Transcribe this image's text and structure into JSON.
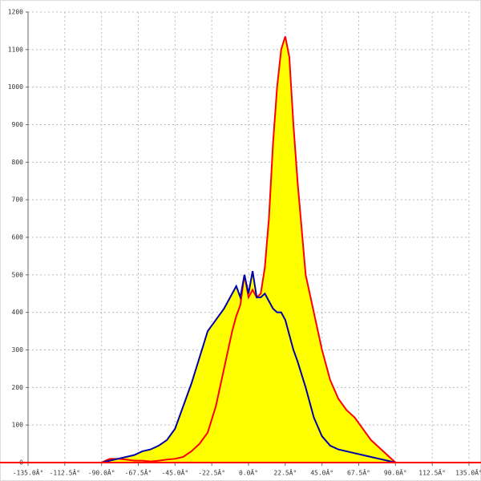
{
  "chart_data": {
    "type": "area",
    "x": [
      -90,
      -85,
      -80,
      -75,
      -70,
      -65,
      -60,
      -55,
      -50,
      -45,
      -40,
      -35,
      -30,
      -25,
      -20,
      -15,
      -10,
      -7.5,
      -5,
      -2.5,
      0,
      2.5,
      5,
      7.5,
      10,
      12.5,
      15,
      17.5,
      20,
      22.5,
      25,
      27.5,
      30,
      35,
      40,
      45,
      50,
      55,
      60,
      65,
      70,
      75,
      80,
      85,
      90
    ],
    "series": [
      {
        "color": "#ff0000",
        "fill_color": "#ffff00",
        "values": [
          0,
          10,
          10,
          8,
          5,
          5,
          3,
          5,
          8,
          10,
          15,
          30,
          50,
          80,
          150,
          250,
          350,
          390,
          420,
          500,
          440,
          460,
          440,
          450,
          520,
          650,
          850,
          1000,
          1100,
          1135,
          1080,
          900,
          750,
          500,
          400,
          300,
          220,
          170,
          140,
          120,
          90,
          60,
          40,
          20,
          0
        ]
      },
      {
        "color": "#0000aa",
        "fill_color": "#ffff00",
        "values": [
          0,
          5,
          10,
          15,
          20,
          30,
          35,
          45,
          60,
          90,
          150,
          210,
          280,
          350,
          380,
          410,
          450,
          470,
          440,
          500,
          450,
          510,
          440,
          440,
          450,
          430,
          410,
          400,
          400,
          380,
          340,
          300,
          270,
          200,
          120,
          70,
          45,
          35,
          30,
          25,
          20,
          15,
          10,
          5,
          0
        ]
      }
    ],
    "xlim": [
      -135,
      135
    ],
    "xticks": [
      {
        "value": -135,
        "label": "-135.0Â°"
      },
      {
        "value": -112.5,
        "label": "-112.5Â°"
      },
      {
        "value": -90,
        "label": "-90.0Â°"
      },
      {
        "value": -67.5,
        "label": "-67.5Â°"
      },
      {
        "value": -45,
        "label": "-45.0Â°"
      },
      {
        "value": -22.5,
        "label": "-22.5Â°"
      },
      {
        "value": 0,
        "label": "0.0Â°"
      },
      {
        "value": 22.5,
        "label": "22.5Â°"
      },
      {
        "value": 45,
        "label": "45.0Â°"
      },
      {
        "value": 67.5,
        "label": "67.5Â°"
      },
      {
        "value": 90,
        "label": "90.0Â°"
      },
      {
        "value": 112.5,
        "label": "112.5Â°"
      },
      {
        "value": 135,
        "label": "135.0Â°"
      }
    ],
    "ylim": [
      0,
      1200
    ],
    "yticks": [
      0,
      100,
      200,
      300,
      400,
      500,
      600,
      700,
      800,
      900,
      1000,
      1100,
      1200
    ],
    "grid": true,
    "axis_color": "#ff0000"
  }
}
